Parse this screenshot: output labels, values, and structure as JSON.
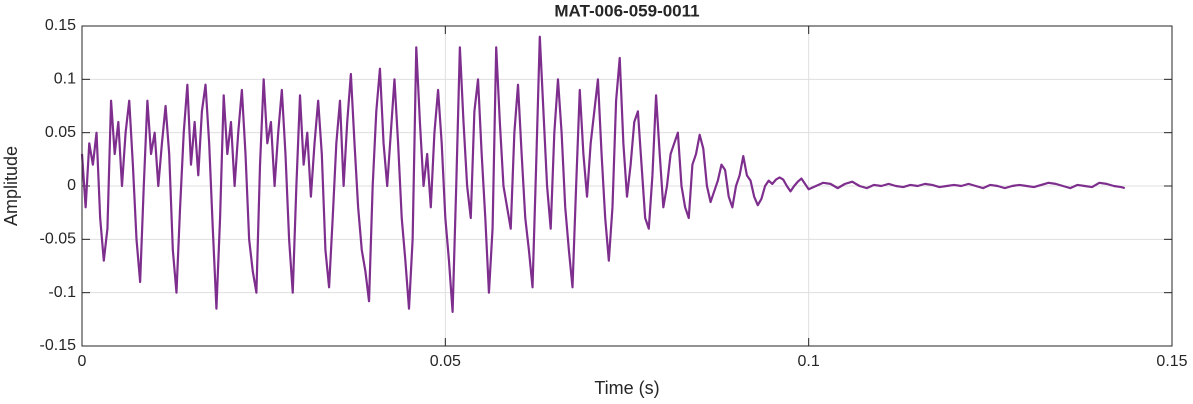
{
  "chart_data": {
    "type": "line",
    "title": "MAT-006-059-0011",
    "x_label": "Time (s)",
    "y_label": "Amplitude",
    "color": "#7E2F8E",
    "grid": true,
    "xlim": [
      0,
      0.15
    ],
    "ylim": [
      -0.15,
      0.15
    ],
    "xticks": [
      0,
      0.05,
      0.1,
      0.15
    ],
    "yticks": [
      -0.15,
      -0.1,
      -0.05,
      0,
      0.05,
      0.1,
      0.15
    ],
    "x": [
      0,
      0.0005,
      0.001,
      0.0015,
      0.002,
      0.0025,
      0.003,
      0.0035,
      0.004,
      0.0045,
      0.005,
      0.0055,
      0.006,
      0.0065,
      0.007,
      0.0075,
      0.008,
      0.0085,
      0.009,
      0.0095,
      0.01,
      0.0105,
      0.011,
      0.0115,
      0.012,
      0.0125,
      0.013,
      0.0135,
      0.014,
      0.0145,
      0.015,
      0.0155,
      0.016,
      0.0165,
      0.017,
      0.0175,
      0.018,
      0.0185,
      0.019,
      0.0195,
      0.02,
      0.0205,
      0.021,
      0.0215,
      0.022,
      0.0225,
      0.023,
      0.0235,
      0.024,
      0.0245,
      0.025,
      0.0255,
      0.026,
      0.0265,
      0.027,
      0.0275,
      0.028,
      0.0285,
      0.029,
      0.0295,
      0.03,
      0.0305,
      0.031,
      0.0315,
      0.032,
      0.0325,
      0.033,
      0.0335,
      0.034,
      0.0345,
      0.035,
      0.0355,
      0.036,
      0.0365,
      0.037,
      0.0375,
      0.038,
      0.0385,
      0.039,
      0.0395,
      0.04,
      0.0405,
      0.041,
      0.0415,
      0.042,
      0.0425,
      0.043,
      0.0435,
      0.044,
      0.0445,
      0.045,
      0.0455,
      0.046,
      0.0465,
      0.047,
      0.0475,
      0.048,
      0.0485,
      0.049,
      0.0495,
      0.05,
      0.0505,
      0.051,
      0.0515,
      0.052,
      0.0525,
      0.053,
      0.0535,
      0.054,
      0.0545,
      0.055,
      0.0555,
      0.056,
      0.0565,
      0.057,
      0.0575,
      0.058,
      0.0585,
      0.059,
      0.0595,
      0.06,
      0.0605,
      0.061,
      0.0615,
      0.062,
      0.0625,
      0.063,
      0.0635,
      0.064,
      0.0645,
      0.065,
      0.0655,
      0.066,
      0.0665,
      0.067,
      0.0675,
      0.068,
      0.0685,
      0.069,
      0.0695,
      0.07,
      0.0705,
      0.071,
      0.0715,
      0.072,
      0.0725,
      0.073,
      0.0735,
      0.074,
      0.0745,
      0.075,
      0.0755,
      0.076,
      0.0765,
      0.077,
      0.0775,
      0.078,
      0.0785,
      0.079,
      0.0795,
      0.08,
      0.0805,
      0.081,
      0.0815,
      0.082,
      0.0825,
      0.083,
      0.0835,
      0.084,
      0.0845,
      0.085,
      0.0855,
      0.086,
      0.0865,
      0.087,
      0.0875,
      0.088,
      0.0885,
      0.089,
      0.0895,
      0.09,
      0.0905,
      0.091,
      0.0915,
      0.092,
      0.0925,
      0.093,
      0.0935,
      0.094,
      0.0945,
      0.095,
      0.0955,
      0.096,
      0.0965,
      0.097,
      0.0975,
      0.098,
      0.0985,
      0.099,
      0.0995,
      0.1,
      0.101,
      0.102,
      0.103,
      0.104,
      0.105,
      0.106,
      0.107,
      0.108,
      0.109,
      0.11,
      0.111,
      0.112,
      0.113,
      0.114,
      0.115,
      0.116,
      0.117,
      0.118,
      0.119,
      0.12,
      0.121,
      0.122,
      0.123,
      0.124,
      0.125,
      0.126,
      0.127,
      0.128,
      0.129,
      0.13,
      0.131,
      0.132,
      0.133,
      0.134,
      0.135,
      0.136,
      0.137,
      0.138,
      0.139,
      0.14,
      0.141,
      0.142,
      0.143,
      0.1435
    ],
    "values": [
      0.03,
      -0.02,
      0.04,
      0.02,
      0.05,
      -0.03,
      -0.07,
      -0.04,
      0.08,
      0.03,
      0.06,
      0.0,
      0.05,
      0.08,
      0.02,
      -0.05,
      -0.09,
      0.0,
      0.08,
      0.03,
      0.05,
      0.0,
      0.04,
      0.075,
      0.03,
      -0.06,
      -0.1,
      -0.02,
      0.05,
      0.095,
      0.02,
      0.06,
      0.01,
      0.07,
      0.095,
      0.04,
      -0.04,
      -0.115,
      -0.03,
      0.085,
      0.03,
      0.06,
      0.0,
      0.05,
      0.09,
      0.03,
      -0.05,
      -0.08,
      -0.1,
      0.02,
      0.1,
      0.04,
      0.06,
      0.0,
      0.05,
      0.09,
      0.03,
      -0.05,
      -0.1,
      0.0,
      0.085,
      0.02,
      0.05,
      -0.01,
      0.04,
      0.08,
      0.03,
      -0.06,
      -0.095,
      -0.03,
      0.04,
      0.08,
      0.0,
      0.06,
      0.105,
      0.04,
      -0.02,
      -0.06,
      -0.08,
      -0.108,
      0.0,
      0.07,
      0.11,
      0.04,
      0.0,
      0.05,
      0.1,
      0.04,
      -0.03,
      -0.07,
      -0.115,
      -0.05,
      0.13,
      0.06,
      0.0,
      0.03,
      -0.02,
      0.05,
      0.09,
      0.04,
      -0.03,
      -0.07,
      -0.118,
      0.0,
      0.13,
      0.06,
      0.0,
      -0.03,
      0.07,
      0.1,
      0.03,
      -0.03,
      -0.1,
      -0.04,
      0.13,
      0.06,
      0.0,
      -0.02,
      -0.04,
      0.05,
      0.095,
      0.03,
      -0.03,
      -0.06,
      -0.095,
      0.02,
      0.14,
      0.07,
      0.0,
      -0.04,
      0.05,
      0.1,
      0.05,
      -0.02,
      -0.06,
      -0.095,
      0.0,
      0.09,
      0.03,
      -0.01,
      0.04,
      0.07,
      0.1,
      0.03,
      -0.03,
      -0.07,
      -0.02,
      0.08,
      0.12,
      0.04,
      -0.01,
      0.02,
      0.06,
      0.07,
      0.02,
      -0.03,
      -0.04,
      0.01,
      0.085,
      0.03,
      -0.02,
      0.0,
      0.03,
      0.04,
      0.05,
      0.0,
      -0.02,
      -0.03,
      0.02,
      0.03,
      0.048,
      0.035,
      0.0,
      -0.015,
      -0.005,
      0.005,
      0.02,
      0.015,
      -0.01,
      -0.02,
      0.0,
      0.01,
      0.028,
      0.01,
      0.005,
      -0.01,
      -0.018,
      -0.012,
      0.0,
      0.005,
      0.002,
      0.006,
      0.008,
      0.006,
      0.0,
      -0.005,
      0.0,
      0.004,
      0.007,
      0.002,
      -0.003,
      0.0,
      0.003,
      0.002,
      -0.002,
      0.002,
      0.004,
      0.0,
      -0.002,
      0.001,
      0.0,
      0.002,
      0.0,
      -0.001,
      0.001,
      0.0,
      0.002,
      0.001,
      -0.001,
      0.0,
      0.001,
      0.0,
      0.002,
      0.0,
      -0.002,
      0.001,
      0.0,
      -0.002,
      0.0,
      0.001,
      0.0,
      -0.001,
      0.001,
      0.003,
      0.002,
      0.0,
      -0.002,
      0.001,
      0.0,
      -0.001,
      0.003,
      0.002,
      0.0,
      -0.001,
      -0.002
    ]
  }
}
